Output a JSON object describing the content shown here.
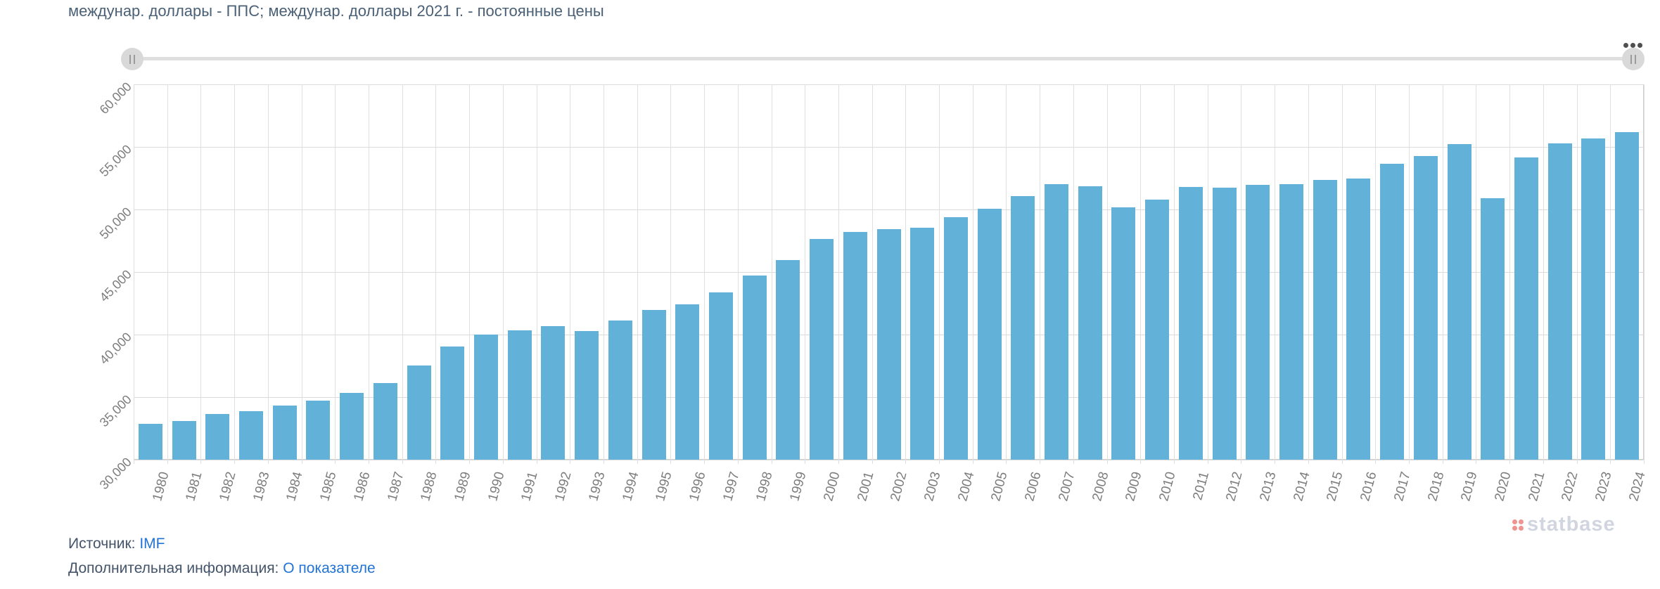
{
  "header": {
    "title": "междунар. доллары - ППС; междунар. доллары 2021 г. - постоянные цены"
  },
  "range_slider": {
    "left_handle_icon": "drag-grip",
    "right_handle_icon": "drag-grip",
    "menu_icon": "more-options-dots"
  },
  "chart_data": {
    "type": "bar",
    "title": "междунар. доллары - ППС; междунар. доллары 2021 г. - постоянные цены",
    "categories": [
      "1980",
      "1981",
      "1982",
      "1983",
      "1984",
      "1985",
      "1986",
      "1987",
      "1988",
      "1989",
      "1990",
      "1991",
      "1992",
      "1993",
      "1994",
      "1995",
      "1996",
      "1997",
      "1998",
      "1999",
      "2000",
      "2001",
      "2002",
      "2003",
      "2004",
      "2005",
      "2006",
      "2007",
      "2008",
      "2009",
      "2010",
      "2011",
      "2012",
      "2013",
      "2014",
      "2015",
      "2016",
      "2017",
      "2018",
      "2019",
      "2020",
      "2021",
      "2022",
      "2023",
      "2024"
    ],
    "values": [
      32850,
      33100,
      33650,
      33900,
      34300,
      34700,
      35350,
      36100,
      37550,
      39050,
      40000,
      40350,
      40650,
      40300,
      41100,
      41950,
      42400,
      43350,
      44700,
      45950,
      47650,
      48200,
      48400,
      48550,
      49400,
      50050,
      51050,
      52050,
      51850,
      50150,
      50800,
      51800,
      51750,
      51950,
      52000,
      52350,
      52500,
      53650,
      54250,
      55200,
      50900,
      54150,
      55300,
      55700,
      56200
    ],
    "ylim": [
      30000,
      60000
    ],
    "ytick_interval": 5000,
    "ytick_labels": [
      "30,000",
      "35,000",
      "40,000",
      "45,000",
      "50,000",
      "55,000",
      "60,000"
    ],
    "grid": true,
    "legend": "none",
    "xlabel": "",
    "ylabel": ""
  },
  "colors": {
    "bar": "#61b1d9",
    "grid": "#dbdbdb",
    "plot_border": "#cfcfcf",
    "axis_text": "#7d7d7d",
    "title_text": "#4a6076",
    "link": "#2273d6",
    "watermark_text": "#ccd1dc",
    "watermark_dot": "#ee8a85"
  },
  "footer": {
    "source_label": "Источник:",
    "source_link": "IMF",
    "info_label": "Дополнительная информация:",
    "info_link": "О показателе"
  },
  "watermark": {
    "text": "statbase"
  }
}
